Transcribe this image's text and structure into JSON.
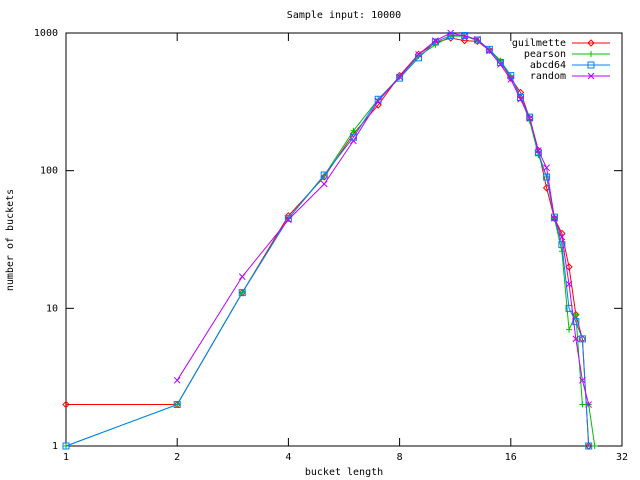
{
  "chart_data": {
    "type": "line",
    "title": "Sample input: 10000",
    "xlabel": "bucket length",
    "ylabel": "number of buckets",
    "logx": true,
    "logy": true,
    "grid": false,
    "legend": "top-right",
    "xlim": [
      1,
      32
    ],
    "ylim": [
      1,
      1000
    ],
    "xticks": [
      1,
      2,
      4,
      8,
      16,
      32
    ],
    "yticks": [
      1,
      10,
      100,
      1000
    ],
    "x": [
      1,
      2,
      3,
      4,
      5,
      6,
      7,
      8,
      9,
      10,
      11,
      12,
      13,
      14,
      15,
      16,
      17,
      18,
      19,
      20,
      21,
      22,
      23,
      24,
      25,
      26,
      27
    ],
    "series": [
      {
        "name": "guilmette",
        "color": "#ff0000",
        "marker": "diamond",
        "values": [
          2,
          2,
          13,
          47,
          90,
          185,
          300,
          490,
          700,
          850,
          920,
          880,
          870,
          750,
          620,
          470,
          370,
          240,
          140,
          75,
          45,
          35,
          20,
          9,
          6,
          1,
          null
        ]
      },
      {
        "name": "pearson",
        "color": "#00c000",
        "marker": "plus",
        "values": [
          1,
          2,
          13,
          45,
          92,
          195,
          330,
          480,
          680,
          820,
          950,
          950,
          880,
          760,
          630,
          490,
          340,
          230,
          130,
          90,
          45,
          26,
          7,
          9,
          2,
          2,
          1
        ]
      },
      {
        "name": "abcd64",
        "color": "#0080ff",
        "marker": "square",
        "values": [
          1,
          2,
          13,
          45,
          93,
          175,
          330,
          470,
          660,
          860,
          960,
          960,
          890,
          760,
          610,
          490,
          340,
          245,
          135,
          90,
          46,
          29,
          10,
          8,
          6,
          1,
          null
        ]
      },
      {
        "name": "random",
        "color": "#c000ff",
        "marker": "cross",
        "values": [
          null,
          3,
          17,
          44,
          80,
          165,
          320,
          480,
          700,
          880,
          1000,
          950,
          900,
          740,
          590,
          460,
          330,
          240,
          140,
          105,
          45,
          33,
          15,
          6,
          3,
          2,
          null
        ]
      }
    ]
  }
}
